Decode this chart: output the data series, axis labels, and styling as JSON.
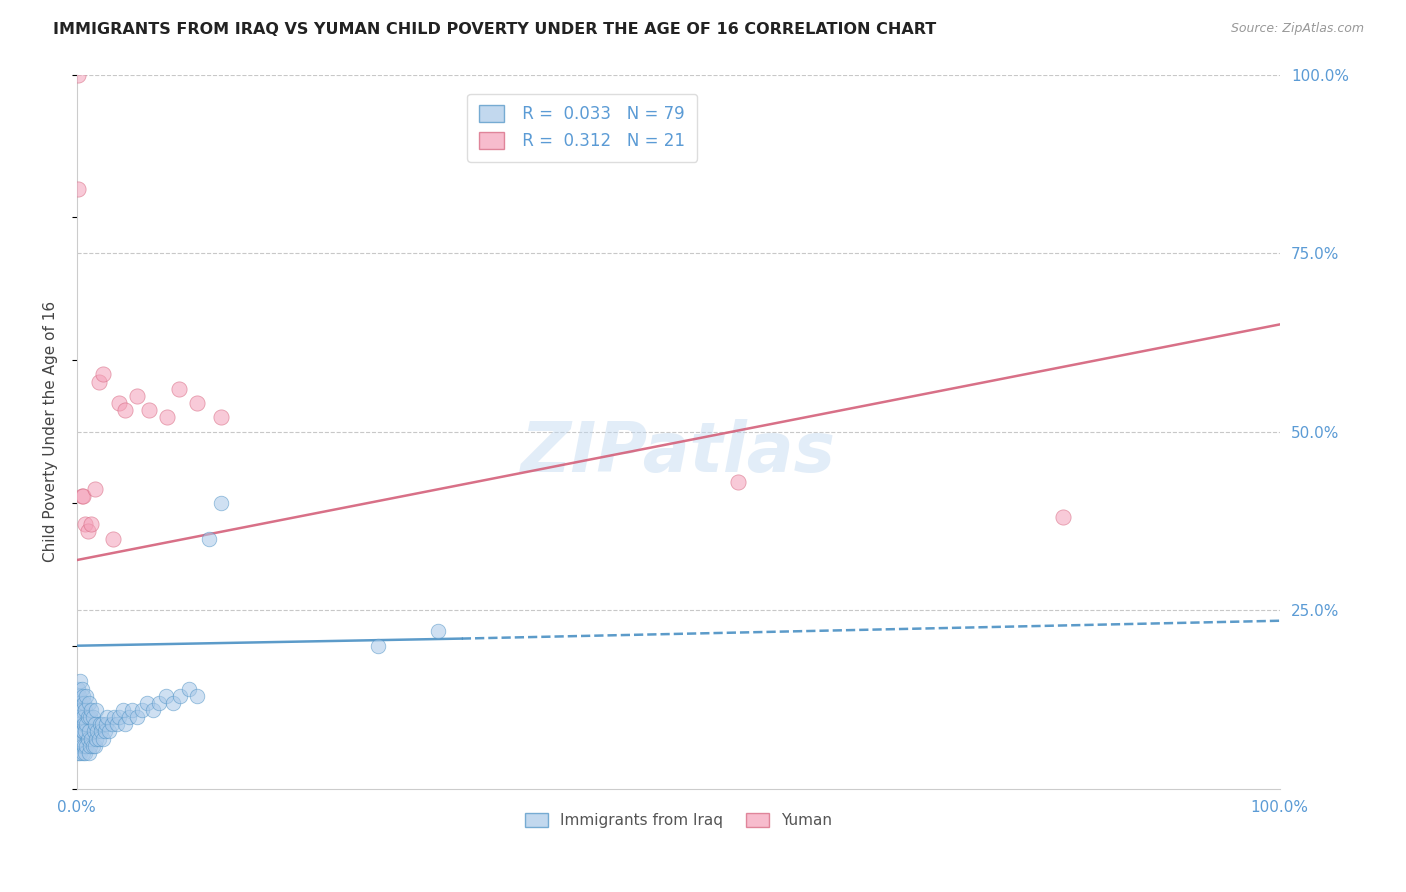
{
  "title": "IMMIGRANTS FROM IRAQ VS YUMAN CHILD POVERTY UNDER THE AGE OF 16 CORRELATION CHART",
  "source": "Source: ZipAtlas.com",
  "ylabel": "Child Poverty Under the Age of 16",
  "xlim": [
    0,
    1.0
  ],
  "ylim": [
    0,
    1.0
  ],
  "ytick_labels_right": [
    "100.0%",
    "75.0%",
    "50.0%",
    "25.0%"
  ],
  "ytick_positions_right": [
    1.0,
    0.75,
    0.5,
    0.25
  ],
  "legend_iraq_R": "0.033",
  "legend_iraq_N": "79",
  "legend_yuman_R": "0.312",
  "legend_yuman_N": "21",
  "blue_color": "#a8c8e8",
  "pink_color": "#f4a0b8",
  "blue_line_color": "#4a90c4",
  "pink_line_color": "#d4607a",
  "watermark": "ZIPatlas",
  "iraq_x": [
    0.001,
    0.001,
    0.001,
    0.001,
    0.001,
    0.002,
    0.002,
    0.002,
    0.002,
    0.003,
    0.003,
    0.003,
    0.003,
    0.003,
    0.004,
    0.004,
    0.004,
    0.004,
    0.005,
    0.005,
    0.005,
    0.005,
    0.006,
    0.006,
    0.006,
    0.007,
    0.007,
    0.007,
    0.008,
    0.008,
    0.008,
    0.009,
    0.009,
    0.01,
    0.01,
    0.01,
    0.011,
    0.011,
    0.012,
    0.012,
    0.013,
    0.013,
    0.014,
    0.015,
    0.015,
    0.016,
    0.016,
    0.017,
    0.018,
    0.019,
    0.02,
    0.021,
    0.022,
    0.023,
    0.024,
    0.025,
    0.027,
    0.029,
    0.031,
    0.033,
    0.035,
    0.038,
    0.04,
    0.043,
    0.046,
    0.05,
    0.054,
    0.058,
    0.063,
    0.068,
    0.074,
    0.08,
    0.086,
    0.093,
    0.1,
    0.11,
    0.12,
    0.25,
    0.3
  ],
  "iraq_y": [
    0.05,
    0.08,
    0.1,
    0.12,
    0.14,
    0.06,
    0.09,
    0.11,
    0.13,
    0.05,
    0.07,
    0.1,
    0.12,
    0.15,
    0.06,
    0.08,
    0.11,
    0.14,
    0.05,
    0.08,
    0.1,
    0.13,
    0.06,
    0.09,
    0.12,
    0.05,
    0.08,
    0.11,
    0.06,
    0.09,
    0.13,
    0.07,
    0.1,
    0.05,
    0.08,
    0.12,
    0.06,
    0.1,
    0.07,
    0.11,
    0.06,
    0.1,
    0.08,
    0.06,
    0.09,
    0.07,
    0.11,
    0.08,
    0.07,
    0.09,
    0.08,
    0.09,
    0.07,
    0.08,
    0.09,
    0.1,
    0.08,
    0.09,
    0.1,
    0.09,
    0.1,
    0.11,
    0.09,
    0.1,
    0.11,
    0.1,
    0.11,
    0.12,
    0.11,
    0.12,
    0.13,
    0.12,
    0.13,
    0.14,
    0.13,
    0.35,
    0.4,
    0.2,
    0.22
  ],
  "iraq_line_x": [
    0.0,
    1.0
  ],
  "iraq_line_y": [
    0.195,
    0.235
  ],
  "yuman_x": [
    0.001,
    0.001,
    0.004,
    0.005,
    0.007,
    0.009,
    0.012,
    0.015,
    0.018,
    0.022,
    0.03,
    0.035,
    0.04,
    0.05,
    0.06,
    0.075,
    0.085,
    0.1,
    0.12,
    0.55,
    0.82
  ],
  "yuman_y": [
    1.0,
    0.84,
    0.41,
    0.41,
    0.37,
    0.36,
    0.37,
    0.42,
    0.57,
    0.58,
    0.35,
    0.54,
    0.53,
    0.55,
    0.53,
    0.52,
    0.56,
    0.54,
    0.52,
    0.43,
    0.38
  ],
  "yuman_line_x": [
    0.0,
    1.0
  ],
  "yuman_line_y": [
    0.32,
    0.65
  ]
}
